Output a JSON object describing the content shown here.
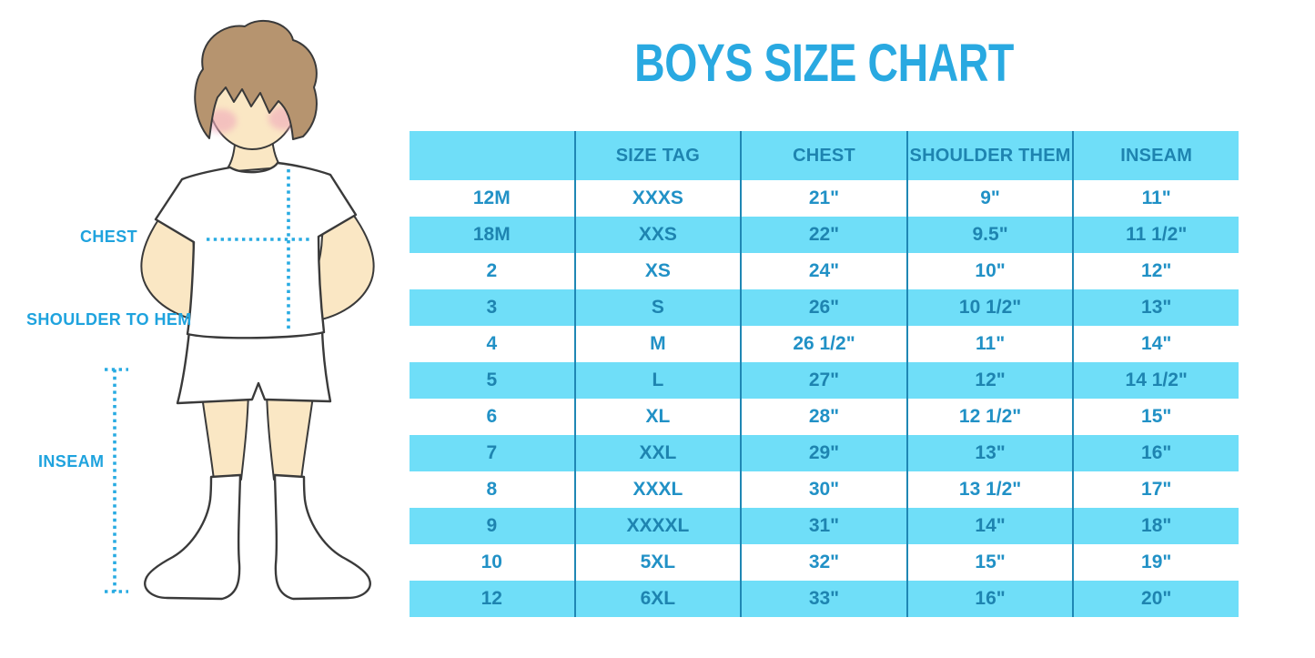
{
  "title": "BOYS SIZE CHART",
  "figure": {
    "labels": {
      "chest": "CHEST",
      "shoulder_to_hem": "SHOULDER TO HEM",
      "inseam": "INSEAM"
    }
  },
  "chart_data": {
    "type": "table",
    "title": "BOYS SIZE CHART",
    "columns": [
      "",
      "SIZE TAG",
      "CHEST",
      "SHOULDER THEM",
      "INSEAM"
    ],
    "rows": [
      [
        "12M",
        "XXXS",
        "21\"",
        "9\"",
        "11\""
      ],
      [
        "18M",
        "XXS",
        "22\"",
        "9.5\"",
        "11 1/2\""
      ],
      [
        "2",
        "XS",
        "24\"",
        "10\"",
        "12\""
      ],
      [
        "3",
        "S",
        "26\"",
        "10 1/2\"",
        "13\""
      ],
      [
        "4",
        "M",
        "26 1/2\"",
        "11\"",
        "14\""
      ],
      [
        "5",
        "L",
        "27\"",
        "12\"",
        "14 1/2\""
      ],
      [
        "6",
        "XL",
        "28\"",
        "12 1/2\"",
        "15\""
      ],
      [
        "7",
        "XXL",
        "29\"",
        "13\"",
        "16\""
      ],
      [
        "8",
        "XXXL",
        "30\"",
        "13 1/2\"",
        "17\""
      ],
      [
        "9",
        "XXXXL",
        "31\"",
        "14\"",
        "18\""
      ],
      [
        "10",
        "5XL",
        "32\"",
        "15\"",
        "19\""
      ],
      [
        "12",
        "6XL",
        "33\"",
        "16\"",
        "20\""
      ]
    ]
  },
  "colors": {
    "accent_title": "#29A9E1",
    "table_stripe": "#6FDEF8",
    "table_divider": "#1F87B4",
    "table_header_text": "#1E84B0",
    "table_cell_text": "#2191C6",
    "label_text": "#1FA3DE",
    "dotted_line": "#29ABE2",
    "skin": "#FAE7C4",
    "hair": "#B6946F",
    "cheek": "#F0AABB",
    "outline": "#3A3A3A"
  }
}
